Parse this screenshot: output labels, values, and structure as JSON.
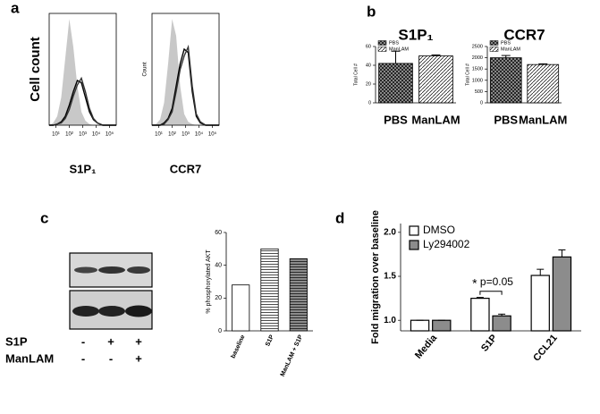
{
  "chart_data": [
    {
      "type": "line",
      "label": "a",
      "ylabel": "Cell count",
      "xlabel": "S1P₁",
      "xlim": [
        0.5,
        5.5
      ],
      "ylim": [
        0,
        100
      ],
      "xticks": [
        {
          "value": 1,
          "label": "10¹"
        },
        {
          "value": 2,
          "label": "10²"
        },
        {
          "value": 3,
          "label": "10³"
        },
        {
          "value": 4,
          "label": "10⁴"
        },
        {
          "value": 5,
          "label": "10⁵"
        }
      ],
      "x": [
        0.5,
        0.8,
        1.1,
        1.4,
        1.7,
        2.0,
        2.3,
        2.6,
        2.9,
        3.2,
        3.5,
        3.8,
        4.1,
        4.5,
        5.0,
        5.5
      ],
      "series": [
        {
          "color": "#c8c8c8",
          "fill": true,
          "values": [
            0,
            2,
            8,
            25,
            60,
            95,
            70,
            35,
            12,
            4,
            1,
            0,
            0,
            0,
            0,
            0
          ]
        },
        {
          "color": "#000000",
          "values": [
            0,
            0,
            1,
            3,
            8,
            18,
            30,
            40,
            38,
            25,
            12,
            5,
            2,
            0,
            0,
            0
          ]
        },
        {
          "color": "#333333",
          "values": [
            0,
            0,
            1,
            2,
            6,
            14,
            26,
            36,
            42,
            30,
            15,
            6,
            2,
            0,
            0,
            0
          ]
        }
      ]
    },
    {
      "type": "line",
      "ylabel": "Count",
      "xlabel": "CCR7",
      "xlim": [
        0.5,
        5.5
      ],
      "ylim": [
        0,
        100
      ],
      "xticks": [
        {
          "value": 1,
          "label": "10¹"
        },
        {
          "value": 2,
          "label": "10²"
        },
        {
          "value": 3,
          "label": "10³"
        },
        {
          "value": 4,
          "label": "10⁴"
        },
        {
          "value": 5,
          "label": "10⁵"
        }
      ],
      "x": [
        0.5,
        0.8,
        1.1,
        1.4,
        1.7,
        2.0,
        2.3,
        2.6,
        2.9,
        3.2,
        3.5,
        3.8,
        4.1,
        4.5,
        5.0,
        5.5
      ],
      "series": [
        {
          "color": "#c8c8c8",
          "fill": true,
          "values": [
            0,
            1,
            5,
            20,
            55,
            95,
            80,
            35,
            10,
            3,
            1,
            0,
            0,
            0,
            0,
            0
          ]
        },
        {
          "color": "#000000",
          "values": [
            0,
            0,
            0,
            2,
            6,
            15,
            35,
            55,
            68,
            65,
            30,
            8,
            2,
            0,
            0,
            0
          ]
        },
        {
          "color": "#333333",
          "values": [
            0,
            0,
            0,
            1,
            5,
            12,
            30,
            50,
            62,
            70,
            35,
            10,
            3,
            0,
            0,
            0
          ]
        }
      ]
    },
    {
      "type": "bar",
      "label": "b",
      "title": "S1P₁",
      "ylabel": "Total Cell #",
      "categories": [
        "PBS",
        "ManLAM"
      ],
      "values": [
        42,
        50
      ],
      "errors": [
        13,
        1
      ],
      "ylim": [
        0,
        60
      ],
      "yticks": [
        0,
        20,
        40,
        60
      ],
      "colors": [
        "#9a9a9a",
        "#ffffff"
      ],
      "patterns": [
        "crosshatch",
        "hatch"
      ],
      "legend": "top-left"
    },
    {
      "type": "bar",
      "title": "CCR7",
      "ylabel": "Total Cell #",
      "categories": [
        "PBS",
        "ManLAM"
      ],
      "values": [
        2000,
        1700
      ],
      "errors": [
        100,
        30
      ],
      "ylim": [
        0,
        2500
      ],
      "yticks": [
        0,
        500,
        1000,
        1500,
        2000,
        2500
      ],
      "colors": [
        "#9a9a9a",
        "#ffffff"
      ],
      "patterns": [
        "crosshatch",
        "hatch"
      ],
      "legend": "top-left"
    },
    {
      "type": "bar",
      "label": "c",
      "ylabel": "% phosphorylated AKT",
      "categories": [
        "baseline",
        "S1P",
        "ManLAM + S1P"
      ],
      "values": [
        28,
        50,
        44
      ],
      "ylim": [
        0,
        60
      ],
      "yticks": [
        0,
        20,
        40,
        60
      ],
      "colors": [
        "#ffffff",
        "#ffffff",
        "#8c8c8c"
      ],
      "patterns": [
        "none",
        "stripes",
        "stripes"
      ],
      "blot": {
        "rows": [
          {
            "label": "S1P",
            "signs": [
              "-",
              "+",
              "+"
            ]
          },
          {
            "label": "ManLAM",
            "signs": [
              "-",
              "-",
              "+"
            ]
          }
        ]
      }
    },
    {
      "type": "bar",
      "label": "d",
      "ylabel": "Fold migration over baseline",
      "categories": [
        "Media",
        "S1P",
        "CCL21"
      ],
      "series": [
        {
          "name": "DMSO",
          "color": "#ffffff",
          "values": [
            1,
            1.25,
            1.51
          ],
          "errors": [
            0,
            0.01,
            0.07
          ]
        },
        {
          "name": "Ly294002",
          "color": "#8c8c8c",
          "values": [
            1,
            1.05,
            1.72
          ],
          "errors": [
            0,
            0.02,
            0.08
          ]
        }
      ],
      "ylim": [
        0.88,
        2.1
      ],
      "yticks": [
        {
          "value": 1,
          "label": "1.0"
        },
        {
          "value": 1.5,
          "label": "1.5"
        },
        {
          "value": 2,
          "label": "2.0"
        }
      ],
      "legend": "top-left",
      "annotations": [
        "*",
        "p=0.05"
      ]
    }
  ]
}
